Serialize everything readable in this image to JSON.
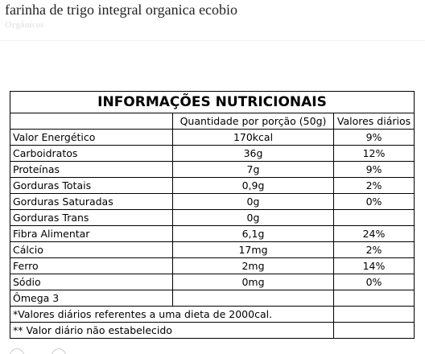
{
  "header": {
    "title": "farinha de trigo integral organica ecobio",
    "subtitle": "Orgânicos"
  },
  "table": {
    "title": "INFORMAÇÕES NUTRICIONAIS",
    "columns": [
      "Quantidade por porção (50g)",
      "Valores diários"
    ],
    "rows": [
      [
        "Valor Energético",
        "170kcal",
        "9%"
      ],
      [
        "Carboidratos",
        "36g",
        "12%"
      ],
      [
        "Proteínas",
        "7g",
        "9%"
      ],
      [
        "Gorduras Totais",
        "0,9g",
        "2%"
      ],
      [
        "Gorduras Saturadas",
        "0g",
        "0%"
      ],
      [
        "Gorduras Trans",
        "0g",
        null
      ],
      [
        "Fibra Alimentar",
        "6,1g",
        "24%"
      ],
      [
        "Cálcio",
        "17mg",
        "2%"
      ],
      [
        "Ferro",
        "2mg",
        "14%"
      ],
      [
        "Sódio",
        "0mg",
        "0%"
      ],
      [
        "Ômega 3",
        null,
        null
      ]
    ],
    "footnotes": [
      "*Valores diários referentes a uma dieta de 2000cal.",
      "** Valor diário não estabelecido"
    ]
  }
}
